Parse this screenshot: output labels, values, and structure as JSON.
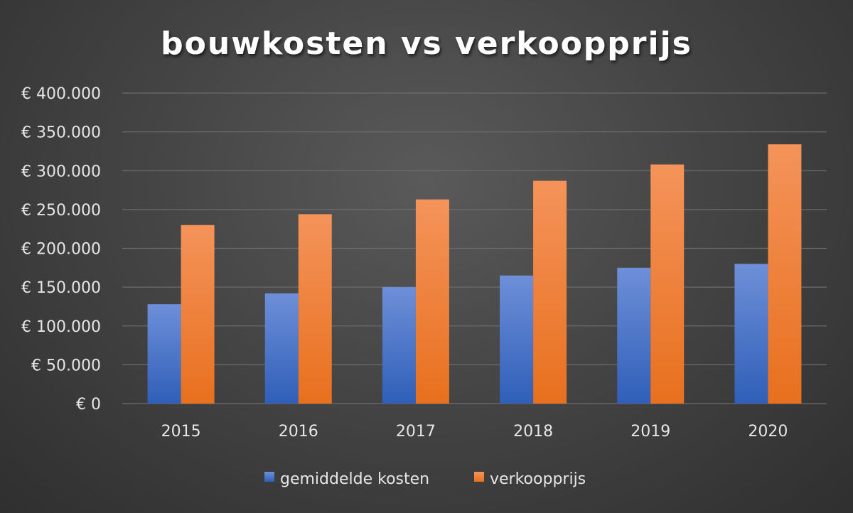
{
  "chart_data": {
    "type": "bar",
    "title": "bouwkosten vs verkoopprijs",
    "xlabel": "",
    "ylabel": "",
    "categories": [
      "2015",
      "2016",
      "2017",
      "2018",
      "2019",
      "2020"
    ],
    "series": [
      {
        "name": "gemiddelde kosten",
        "values": [
          128000,
          142000,
          150000,
          165000,
          175000,
          180000
        ],
        "color": "#4472c4"
      },
      {
        "name": "verkoopprijs",
        "values": [
          230000,
          244000,
          263000,
          287000,
          308000,
          334000
        ],
        "color": "#ed7d31"
      }
    ],
    "ylim": [
      0,
      400000
    ],
    "yticks": [
      0,
      50000,
      100000,
      150000,
      200000,
      250000,
      300000,
      350000,
      400000
    ],
    "ytick_labels": [
      "€ 0",
      "€ 50.000",
      "€ 100.000",
      "€ 150.000",
      "€ 200.000",
      "€ 250.000",
      "€ 300.000",
      "€ 350.000",
      "€ 400.000"
    ],
    "grid": true,
    "legend": "bottom"
  }
}
